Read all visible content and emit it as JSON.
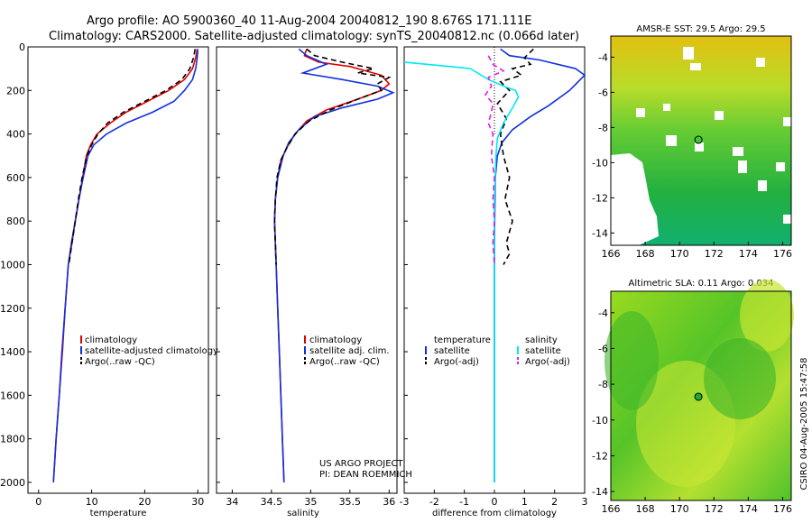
{
  "header": {
    "line1": "Argo profile: AO 5900360_40 11-Aug-2004 20040812_190 8.676S 171.111E",
    "line2": "Climatology: CARS2000. Satellite-adjusted climatology: synTS_20040812.nc (0.066d later)"
  },
  "credit": {
    "project": "US ARGO PROJECT",
    "pi": "PI: DEAN ROEMMICH",
    "stamp": "CSIRO 04-Aug-2005 15:47:58"
  },
  "chart_data": [
    {
      "type": "line",
      "id": "temperature",
      "xlabel": "temperature",
      "xlim": [
        -2,
        32
      ],
      "ylim": [
        2050,
        0
      ],
      "xticks": [
        0,
        10,
        20,
        30
      ],
      "yticks": [
        0,
        200,
        400,
        600,
        800,
        1000,
        1200,
        1400,
        1600,
        1800,
        2000
      ],
      "legend": [
        "climatology",
        "satellite-adjusted climatology",
        "Argo(..raw -QC)"
      ],
      "series": [
        {
          "name": "climatology",
          "color": "#e00000",
          "dash": "",
          "points": [
            [
              29.9,
              10
            ],
            [
              29.6,
              50
            ],
            [
              29.0,
              100
            ],
            [
              27.5,
              150
            ],
            [
              24.5,
              200
            ],
            [
              20.5,
              250
            ],
            [
              16.5,
              300
            ],
            [
              13.5,
              350
            ],
            [
              11.0,
              400
            ],
            [
              9.8,
              450
            ],
            [
              9.0,
              500
            ],
            [
              8.3,
              600
            ],
            [
              7.6,
              700
            ],
            [
              6.9,
              800
            ],
            [
              6.3,
              900
            ],
            [
              5.6,
              1000
            ],
            [
              5.0,
              1200
            ],
            [
              4.5,
              1400
            ],
            [
              3.9,
              1600
            ],
            [
              3.3,
              1800
            ],
            [
              2.8,
              2000
            ]
          ]
        },
        {
          "name": "satellite-adjusted climatology",
          "color": "#1030e0",
          "dash": "",
          "points": [
            [
              30.0,
              10
            ],
            [
              29.9,
              50
            ],
            [
              29.6,
              100
            ],
            [
              29.0,
              150
            ],
            [
              27.5,
              200
            ],
            [
              25.5,
              250
            ],
            [
              21.5,
              300
            ],
            [
              16.5,
              350
            ],
            [
              12.8,
              400
            ],
            [
              10.4,
              450
            ],
            [
              9.3,
              500
            ],
            [
              8.4,
              600
            ],
            [
              7.6,
              700
            ],
            [
              6.9,
              800
            ],
            [
              6.2,
              900
            ],
            [
              5.6,
              1000
            ],
            [
              5.0,
              1200
            ],
            [
              4.4,
              1400
            ],
            [
              3.9,
              1600
            ],
            [
              3.3,
              1800
            ],
            [
              2.8,
              2000
            ]
          ]
        },
        {
          "name": "Argo(..raw -QC)",
          "color": "#000000",
          "dash": "6,4",
          "points": [
            [
              29.5,
              10
            ],
            [
              29.2,
              50
            ],
            [
              28.5,
              100
            ],
            [
              27.0,
              150
            ],
            [
              24.0,
              200
            ],
            [
              20.0,
              250
            ],
            [
              16.0,
              300
            ],
            [
              13.0,
              350
            ],
            [
              11.2,
              400
            ],
            [
              10.0,
              450
            ],
            [
              9.1,
              500
            ],
            [
              8.2,
              600
            ],
            [
              7.5,
              700
            ],
            [
              6.9,
              800
            ],
            [
              6.3,
              900
            ],
            [
              5.7,
              1000
            ]
          ]
        }
      ]
    },
    {
      "type": "line",
      "id": "salinity",
      "xlabel": "salinity",
      "xlim": [
        33.8,
        36.1
      ],
      "ylim": [
        2050,
        0
      ],
      "xticks": [
        34,
        34.5,
        35,
        35.5,
        36
      ],
      "legend": [
        "climatology",
        "satellite adj. clim.",
        "Argo(..raw -QC)"
      ],
      "series": [
        {
          "name": "climatology",
          "color": "#e00000",
          "dash": "",
          "points": [
            [
              34.95,
              10
            ],
            [
              34.92,
              40
            ],
            [
              35.1,
              70
            ],
            [
              35.5,
              90
            ],
            [
              35.9,
              130
            ],
            [
              36.0,
              170
            ],
            [
              35.9,
              200
            ],
            [
              35.6,
              240
            ],
            [
              35.2,
              290
            ],
            [
              34.95,
              340
            ],
            [
              34.8,
              400
            ],
            [
              34.7,
              460
            ],
            [
              34.62,
              520
            ],
            [
              34.58,
              600
            ],
            [
              34.55,
              700
            ],
            [
              34.54,
              800
            ],
            [
              34.55,
              900
            ],
            [
              34.56,
              1000
            ],
            [
              34.58,
              1200
            ],
            [
              34.6,
              1400
            ],
            [
              34.62,
              1600
            ],
            [
              34.64,
              1800
            ],
            [
              34.66,
              2000
            ]
          ]
        },
        {
          "name": "satellite adj. clim.",
          "color": "#1030e0",
          "dash": "",
          "points": [
            [
              34.85,
              10
            ],
            [
              34.95,
              40
            ],
            [
              35.2,
              80
            ],
            [
              34.9,
              120
            ],
            [
              35.4,
              150
            ],
            [
              35.85,
              180
            ],
            [
              36.05,
              210
            ],
            [
              35.85,
              240
            ],
            [
              35.4,
              280
            ],
            [
              35.05,
              320
            ],
            [
              34.85,
              380
            ],
            [
              34.72,
              440
            ],
            [
              34.65,
              500
            ],
            [
              34.58,
              600
            ],
            [
              34.55,
              700
            ],
            [
              34.54,
              800
            ],
            [
              34.55,
              900
            ],
            [
              34.56,
              1000
            ],
            [
              34.58,
              1200
            ],
            [
              34.6,
              1400
            ],
            [
              34.62,
              1600
            ],
            [
              34.64,
              1800
            ],
            [
              34.66,
              2000
            ]
          ]
        },
        {
          "name": "Argo(..raw -QC)",
          "color": "#000000",
          "dash": "6,4",
          "points": [
            [
              34.95,
              10
            ],
            [
              35.05,
              40
            ],
            [
              35.4,
              70
            ],
            [
              35.8,
              100
            ],
            [
              35.6,
              120
            ],
            [
              36.0,
              140
            ],
            [
              35.85,
              170
            ],
            [
              35.9,
              200
            ],
            [
              35.6,
              240
            ],
            [
              35.25,
              290
            ],
            [
              34.98,
              340
            ],
            [
              34.8,
              400
            ],
            [
              34.7,
              460
            ],
            [
              34.62,
              520
            ],
            [
              34.57,
              600
            ],
            [
              34.55,
              700
            ],
            [
              34.54,
              800
            ],
            [
              34.55,
              900
            ],
            [
              34.56,
              1000
            ]
          ]
        }
      ]
    },
    {
      "type": "line",
      "id": "difference",
      "xlabel": "difference from climatology",
      "xlim": [
        -3,
        3
      ],
      "ylim": [
        2050,
        0
      ],
      "xticks": [
        -3,
        -2,
        -1,
        0,
        1,
        2,
        3
      ],
      "legend_left": {
        "title": "temperature",
        "items": [
          "satellite",
          "Argo(-adj)"
        ]
      },
      "legend_right": {
        "title": "salinity",
        "items": [
          "satellite",
          "Argo(-adj)"
        ]
      },
      "series": [
        {
          "name": "temperature satellite",
          "color": "#1030e0",
          "dash": "",
          "points": [
            [
              0.2,
              10
            ],
            [
              0.5,
              40
            ],
            [
              1.5,
              60
            ],
            [
              2.7,
              100
            ],
            [
              3.0,
              130
            ],
            [
              2.5,
              200
            ],
            [
              1.8,
              270
            ],
            [
              1.2,
              320
            ],
            [
              0.6,
              380
            ],
            [
              0.25,
              440
            ],
            [
              0.1,
              500
            ],
            [
              0.03,
              600
            ],
            [
              0.01,
              800
            ],
            [
              0.0,
              1000
            ],
            [
              0.0,
              2000
            ]
          ]
        },
        {
          "name": "temperature Argo(-adj)",
          "color": "#000000",
          "dash": "6,4",
          "points": [
            [
              1.3,
              10
            ],
            [
              1.0,
              50
            ],
            [
              1.2,
              80
            ],
            [
              0.6,
              100
            ],
            [
              0.9,
              130
            ],
            [
              0.2,
              160
            ],
            [
              0.5,
              200
            ],
            [
              0.1,
              260
            ],
            [
              0.4,
              330
            ],
            [
              0.2,
              400
            ],
            [
              0.3,
              500
            ],
            [
              0.5,
              600
            ],
            [
              0.35,
              700
            ],
            [
              0.6,
              800
            ],
            [
              0.4,
              900
            ],
            [
              0.5,
              950
            ],
            [
              0.3,
              1000
            ]
          ]
        },
        {
          "name": "salinity satellite",
          "color": "#00e8f0",
          "dash": "",
          "points": [
            [
              -3.0,
              70
            ],
            [
              -1.5,
              90
            ],
            [
              -0.8,
              100
            ],
            [
              -0.2,
              150
            ],
            [
              0.3,
              180
            ],
            [
              0.7,
              200
            ],
            [
              0.8,
              230
            ],
            [
              0.6,
              280
            ],
            [
              0.3,
              350
            ],
            [
              0.1,
              420
            ],
            [
              0.05,
              500
            ],
            [
              0.0,
              700
            ],
            [
              0.0,
              2000
            ]
          ]
        },
        {
          "name": "salinity Argo(-adj)",
          "color": "#e020e0",
          "dash": "6,4",
          "points": [
            [
              -0.2,
              40
            ],
            [
              -0.05,
              80
            ],
            [
              0.3,
              110
            ],
            [
              -0.2,
              140
            ],
            [
              -0.1,
              180
            ],
            [
              -0.3,
              220
            ],
            [
              -0.05,
              260
            ],
            [
              -0.1,
              300
            ],
            [
              -0.2,
              350
            ],
            [
              -0.05,
              400
            ],
            [
              -0.1,
              500
            ],
            [
              0.0,
              600
            ],
            [
              -0.05,
              700
            ],
            [
              0.0,
              800
            ],
            [
              -0.05,
              900
            ],
            [
              0.0,
              1000
            ]
          ]
        }
      ]
    },
    {
      "type": "heatmap",
      "id": "sst_map",
      "title": "AMSR-E SST: 29.5 Argo: 29.5",
      "xlim": [
        166,
        176.5
      ],
      "ylim": [
        -14.7,
        -2.8
      ],
      "xticks": [
        166,
        168,
        170,
        172,
        174,
        176
      ],
      "yticks": [
        -4,
        -6,
        -8,
        -10,
        -12,
        -14
      ],
      "marker": [
        171.1,
        -8.7
      ],
      "marker_color": "#33cc33"
    },
    {
      "type": "heatmap",
      "id": "sla_map",
      "title": "Altimetric SLA: 0.11 Argo: 0.034",
      "xlim": [
        166,
        176.5
      ],
      "ylim": [
        -14.5,
        -2.8
      ],
      "xticks": [
        166,
        168,
        170,
        172,
        174,
        176
      ],
      "yticks": [
        -4,
        -6,
        -8,
        -10,
        -12,
        -14
      ],
      "marker": [
        171.1,
        -8.7
      ],
      "marker_color": "#22aa33"
    }
  ]
}
